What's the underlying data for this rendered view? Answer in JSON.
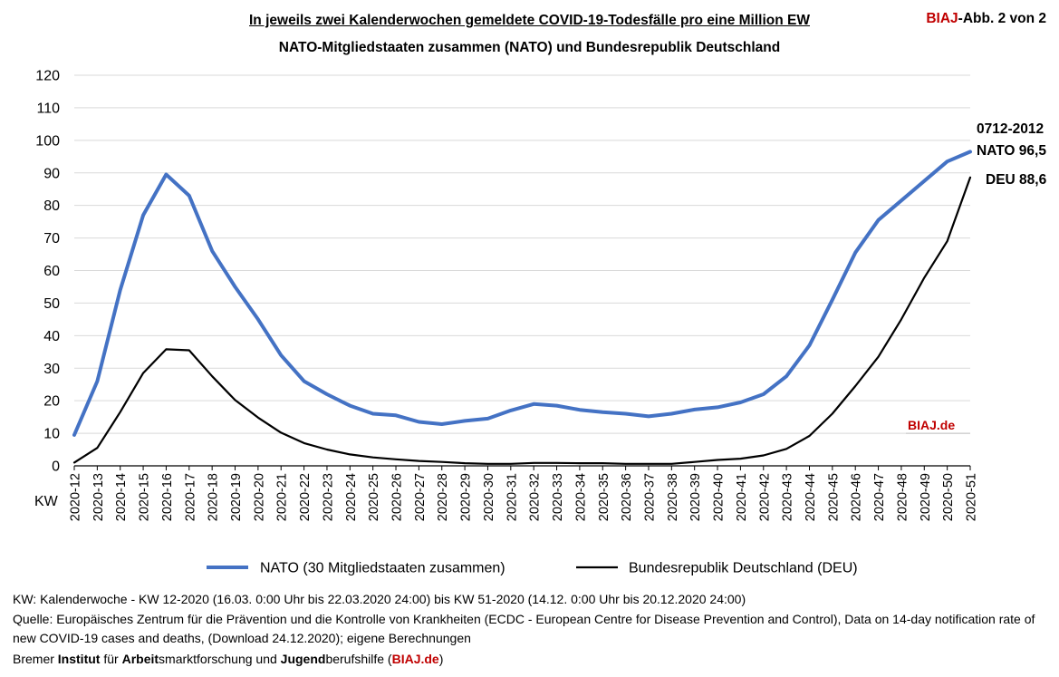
{
  "header": {
    "title_line1": "In jeweils zwei Kalenderwochen gemeldete COVID-19-Todesfälle pro eine Million EW",
    "title_line2": "NATO-Mitgliedstaaten zusammen (NATO) und Bundesrepublik Deutschland",
    "badge_brand": "BIAJ",
    "badge_rest": "-Abb. 2 von 2"
  },
  "chart_data": {
    "type": "line",
    "x_axis_label": "KW",
    "ylim": [
      0,
      120
    ],
    "y_ticks": [
      0,
      10,
      20,
      30,
      40,
      50,
      60,
      70,
      80,
      90,
      100,
      110,
      120
    ],
    "grid": true,
    "legend_position": "bottom",
    "categories": [
      "2020-12",
      "2020-13",
      "2020-14",
      "2020-15",
      "2020-16",
      "2020-17",
      "2020-18",
      "2020-19",
      "2020-20",
      "2020-21",
      "2020-22",
      "2020-23",
      "2020-24",
      "2020-25",
      "2020-26",
      "2020-27",
      "2020-28",
      "2020-29",
      "2020-30",
      "2020-31",
      "2020-32",
      "2020-33",
      "2020-34",
      "2020-35",
      "2020-36",
      "2020-37",
      "2020-38",
      "2020-39",
      "2020-40",
      "2020-41",
      "2020-42",
      "2020-43",
      "2020-44",
      "2020-45",
      "2020-46",
      "2020-47",
      "2020-48",
      "2020-49",
      "2020-50",
      "2020-51"
    ],
    "series": [
      {
        "name": "NATO (30 Mitgliedstaaten zusammen)",
        "color": "#4472c4",
        "values": [
          9.5,
          26,
          54,
          77,
          89.5,
          83,
          66,
          55,
          45,
          34,
          26,
          22,
          18.5,
          16,
          15.5,
          13.5,
          12.8,
          13.8,
          14.5,
          17,
          19,
          18.5,
          17.2,
          16.5,
          16,
          15.2,
          16,
          17.3,
          18,
          19.5,
          22,
          27.5,
          37,
          51,
          65.5,
          75.5,
          81.5,
          87.5,
          93.5,
          96.5
        ]
      },
      {
        "name": "Bundesrepublik Deutschland (DEU)",
        "color": "#000000",
        "values": [
          1,
          5.5,
          16.5,
          28.5,
          35.8,
          35.5,
          27.5,
          20.2,
          14.8,
          10.2,
          7,
          5,
          3.5,
          2.6,
          2,
          1.5,
          1.2,
          0.8,
          0.6,
          0.6,
          0.9,
          0.9,
          0.8,
          0.8,
          0.6,
          0.6,
          0.6,
          1.2,
          1.8,
          2.2,
          3.2,
          5.2,
          9.2,
          16,
          24.5,
          33.5,
          45,
          57.8,
          69,
          88.6
        ]
      }
    ],
    "annotations": {
      "period": "0712-2012",
      "nato_end": "NATO 96,5",
      "deu_end": "DEU 88,6",
      "watermark": "BIAJ.de"
    }
  },
  "footer": {
    "line1": "KW: Kalenderwoche - KW 12-2020 (16.03. 0:00 Uhr bis 22.03.2020 24:00) bis KW 51-2020 (14.12. 0:00 Uhr bis 20.12.2020 24:00)",
    "line2": "Quelle: Europäisches Zentrum für die Prävention und die Kontrolle von Krankheiten (ECDC - European Centre for Disease Prevention and Control), Data on 14-day notification rate of new COVID-19 cases and deaths, (Download 24.12.2020); eigene Berechnungen",
    "line3_parts": [
      "Bremer ",
      "Institut",
      " für ",
      "Arbeit",
      "smarktforschung und ",
      "Jugend",
      "berufshilfe (",
      "BIAJ.de",
      ")"
    ]
  }
}
